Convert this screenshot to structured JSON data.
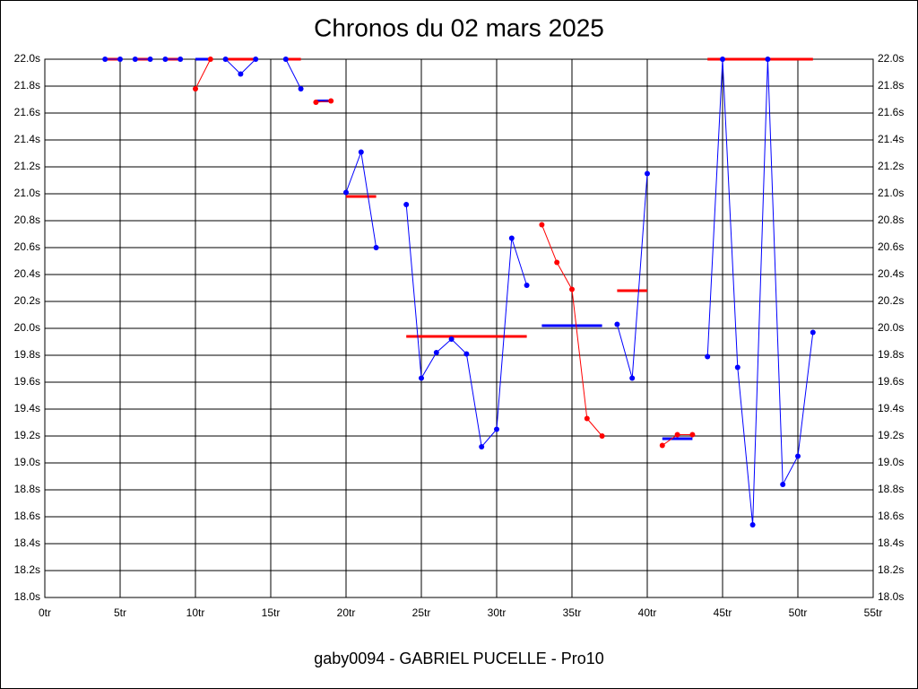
{
  "chart_data": {
    "type": "line",
    "title": "Chronos du 02 mars 2025",
    "xlabel": "gaby0094 - GABRIEL PUCELLE - Pro10",
    "xlim": [
      0,
      55
    ],
    "ylim": [
      18,
      22
    ],
    "xticks": [
      {
        "value": 0,
        "label": "0tr"
      },
      {
        "value": 5,
        "label": "5tr"
      },
      {
        "value": 10,
        "label": "10tr"
      },
      {
        "value": 15,
        "label": "15tr"
      },
      {
        "value": 20,
        "label": "20tr"
      },
      {
        "value": 25,
        "label": "25tr"
      },
      {
        "value": 30,
        "label": "30tr"
      },
      {
        "value": 35,
        "label": "35tr"
      },
      {
        "value": 40,
        "label": "40tr"
      },
      {
        "value": 45,
        "label": "45tr"
      },
      {
        "value": 50,
        "label": "50tr"
      },
      {
        "value": 55,
        "label": "55tr"
      }
    ],
    "yticks": [
      {
        "value": 18,
        "label": "18.0s"
      },
      {
        "value": 18.2,
        "label": "18.2s"
      },
      {
        "value": 18.4,
        "label": "18.4s"
      },
      {
        "value": 18.6,
        "label": "18.6s"
      },
      {
        "value": 18.8,
        "label": "18.8s"
      },
      {
        "value": 19,
        "label": "19.0s"
      },
      {
        "value": 19.2,
        "label": "19.2s"
      },
      {
        "value": 19.4,
        "label": "19.4s"
      },
      {
        "value": 19.6,
        "label": "19.6s"
      },
      {
        "value": 19.8,
        "label": "19.8s"
      },
      {
        "value": 20,
        "label": "20.0s"
      },
      {
        "value": 20.2,
        "label": "20.2s"
      },
      {
        "value": 20.4,
        "label": "20.4s"
      },
      {
        "value": 20.6,
        "label": "20.6s"
      },
      {
        "value": 20.8,
        "label": "20.8s"
      },
      {
        "value": 21,
        "label": "21.0s"
      },
      {
        "value": 21.2,
        "label": "21.2s"
      },
      {
        "value": 21.4,
        "label": "21.4s"
      },
      {
        "value": 21.6,
        "label": "21.6s"
      },
      {
        "value": 21.8,
        "label": "21.8s"
      },
      {
        "value": 22,
        "label": "22.0s"
      }
    ],
    "grid": true,
    "series": [
      {
        "color": "#0000ff",
        "average_color": "#ff0000",
        "x": [
          4,
          5
        ],
        "values": [
          22,
          22
        ],
        "average": 22
      },
      {
        "color": "#0000ff",
        "average_color": "#ff0000",
        "x": [
          6,
          7
        ],
        "values": [
          22,
          22
        ],
        "average": 22
      },
      {
        "color": "#0000ff",
        "average_color": "#ff0000",
        "x": [
          8,
          9
        ],
        "values": [
          22,
          22
        ],
        "average": 22
      },
      {
        "color": "#ff0000",
        "average_color": "#0000ff",
        "x": [
          10,
          11
        ],
        "values": [
          21.78,
          22
        ],
        "average": 22
      },
      {
        "color": "#0000ff",
        "average_color": "#ff0000",
        "x": [
          12,
          13,
          14
        ],
        "values": [
          22,
          21.89,
          22
        ],
        "average": 22
      },
      {
        "color": "#0000ff",
        "average_color": "#ff0000",
        "x": [
          16,
          17
        ],
        "values": [
          22,
          21.78
        ],
        "average": 22
      },
      {
        "color": "#ff0000",
        "average_color": "#0000ff",
        "x": [
          18,
          19
        ],
        "values": [
          21.68,
          21.69
        ],
        "average": 21.69
      },
      {
        "color": "#0000ff",
        "average_color": "#ff0000",
        "x": [
          20,
          21,
          22
        ],
        "values": [
          21.01,
          21.31,
          20.6
        ],
        "average": 20.98
      },
      {
        "color": "#0000ff",
        "average_color": "#ff0000",
        "x": [
          24,
          25,
          26,
          27,
          28,
          29,
          30,
          31,
          32
        ],
        "values": [
          20.92,
          19.63,
          19.82,
          19.92,
          19.81,
          19.12,
          19.25,
          20.67,
          20.32
        ],
        "average": 19.94
      },
      {
        "color": "#ff0000",
        "average_color": "#0000ff",
        "x": [
          33,
          34,
          35,
          36,
          37
        ],
        "values": [
          20.77,
          20.49,
          20.29,
          19.33,
          19.2
        ],
        "average": 20.02
      },
      {
        "color": "#0000ff",
        "average_color": "#ff0000",
        "x": [
          38,
          39,
          40
        ],
        "values": [
          20.03,
          19.63,
          21.15
        ],
        "average": 20.28
      },
      {
        "color": "#ff0000",
        "average_color": "#0000ff",
        "x": [
          41,
          42,
          43
        ],
        "values": [
          19.13,
          19.21,
          19.21
        ],
        "average": 19.18
      },
      {
        "color": "#0000ff",
        "average_color": "#ff0000",
        "x": [
          44,
          45,
          46,
          47,
          48,
          49,
          50,
          51
        ],
        "values": [
          19.79,
          22,
          19.71,
          18.54,
          22,
          18.84,
          19.05,
          19.97
        ],
        "average": 22
      }
    ]
  }
}
